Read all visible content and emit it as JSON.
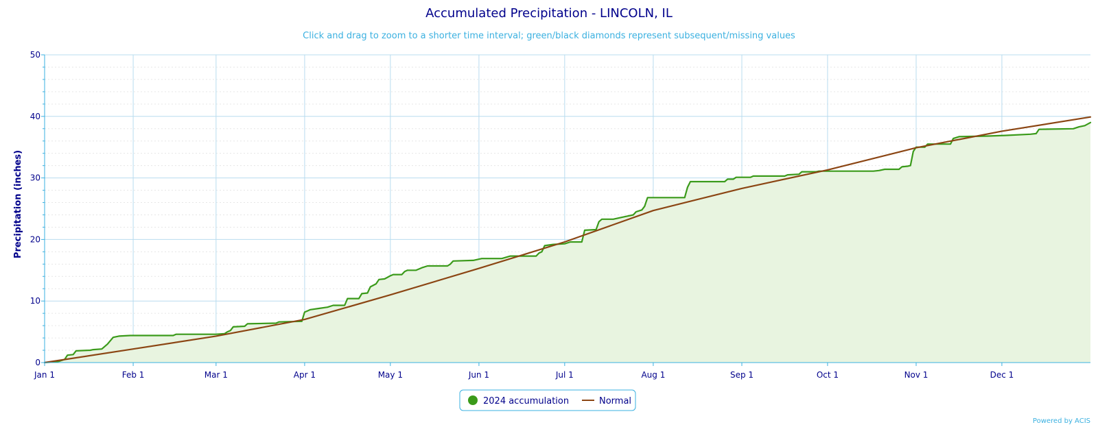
{
  "chart_data": {
    "type": "area",
    "title": "Accumulated Precipitation - LINCOLN, IL",
    "subtitle": "Click and drag to zoom to a shorter time interval; green/black diamonds represent subsequent/missing values",
    "xlabel": "",
    "ylabel": "Precipitation (inches)",
    "ylim": [
      0,
      50
    ],
    "yticks": [
      "0",
      "10",
      "20",
      "30",
      "40",
      "50"
    ],
    "x_range_days": [
      0,
      366
    ],
    "xticks": [
      {
        "label": "Jan 1",
        "day": 0
      },
      {
        "label": "Feb 1",
        "day": 31
      },
      {
        "label": "Mar 1",
        "day": 60
      },
      {
        "label": "Apr 1",
        "day": 91
      },
      {
        "label": "May 1",
        "day": 121
      },
      {
        "label": "Jun 1",
        "day": 152
      },
      {
        "label": "Jul 1",
        "day": 182
      },
      {
        "label": "Aug 1",
        "day": 213
      },
      {
        "label": "Sep 1",
        "day": 244
      },
      {
        "label": "Oct 1",
        "day": 274
      },
      {
        "label": "Nov 1",
        "day": 305
      },
      {
        "label": "Dec 1",
        "day": 335
      }
    ],
    "grid": true,
    "legend_position": "bottom-center",
    "series": [
      {
        "name": "2024 accumulation",
        "color": "#3a9a1a",
        "fill": "#e8f4e0",
        "style": "step-area",
        "points": [
          [
            0,
            0
          ],
          [
            3,
            0.1
          ],
          [
            5,
            0.2
          ],
          [
            7,
            0.5
          ],
          [
            8,
            1.2
          ],
          [
            10,
            1.3
          ],
          [
            11,
            1.9
          ],
          [
            16,
            2.0
          ],
          [
            17,
            2.1
          ],
          [
            20,
            2.2
          ],
          [
            22,
            3.0
          ],
          [
            24,
            4.1
          ],
          [
            26,
            4.3
          ],
          [
            30,
            4.4
          ],
          [
            45,
            4.4
          ],
          [
            46,
            4.6
          ],
          [
            60,
            4.6
          ],
          [
            63,
            4.7
          ],
          [
            64,
            5.0
          ],
          [
            65,
            5.2
          ],
          [
            66,
            5.8
          ],
          [
            70,
            5.9
          ],
          [
            71,
            6.3
          ],
          [
            81,
            6.4
          ],
          [
            82,
            6.6
          ],
          [
            90,
            6.7
          ],
          [
            91,
            8.2
          ],
          [
            92,
            8.4
          ],
          [
            93,
            8.6
          ],
          [
            96,
            8.8
          ],
          [
            99,
            9.0
          ],
          [
            101,
            9.3
          ],
          [
            105,
            9.3
          ],
          [
            106,
            10.4
          ],
          [
            110,
            10.4
          ],
          [
            111,
            11.2
          ],
          [
            113,
            11.3
          ],
          [
            114,
            12.3
          ],
          [
            116,
            12.8
          ],
          [
            117,
            13.5
          ],
          [
            119,
            13.6
          ],
          [
            121,
            14.1
          ],
          [
            122,
            14.3
          ],
          [
            125,
            14.3
          ],
          [
            126,
            14.8
          ],
          [
            127,
            15.0
          ],
          [
            130,
            15.0
          ],
          [
            132,
            15.4
          ],
          [
            134,
            15.7
          ],
          [
            141,
            15.7
          ],
          [
            142,
            16.0
          ],
          [
            143,
            16.5
          ],
          [
            150,
            16.6
          ],
          [
            153,
            16.9
          ],
          [
            160,
            16.9
          ],
          [
            163,
            17.3
          ],
          [
            172,
            17.3
          ],
          [
            173,
            17.8
          ],
          [
            174,
            18.0
          ],
          [
            175,
            19.0
          ],
          [
            178,
            19.2
          ],
          [
            182,
            19.3
          ],
          [
            184,
            19.6
          ],
          [
            188,
            19.6
          ],
          [
            189,
            21.5
          ],
          [
            193,
            21.6
          ],
          [
            194,
            22.9
          ],
          [
            195,
            23.3
          ],
          [
            199,
            23.3
          ],
          [
            202,
            23.6
          ],
          [
            204,
            23.8
          ],
          [
            206,
            24.0
          ],
          [
            207,
            24.5
          ],
          [
            209,
            24.8
          ],
          [
            210,
            25.4
          ],
          [
            211,
            26.8
          ],
          [
            224,
            26.8
          ],
          [
            225,
            28.5
          ],
          [
            226,
            29.4
          ],
          [
            238,
            29.4
          ],
          [
            239,
            29.8
          ],
          [
            241,
            29.8
          ],
          [
            242,
            30.1
          ],
          [
            247,
            30.1
          ],
          [
            248,
            30.3
          ],
          [
            259,
            30.3
          ],
          [
            260,
            30.5
          ],
          [
            264,
            30.6
          ],
          [
            265,
            31.0
          ],
          [
            270,
            31.0
          ],
          [
            271,
            31.1
          ],
          [
            290,
            31.1
          ],
          [
            292,
            31.2
          ],
          [
            294,
            31.4
          ],
          [
            299,
            31.4
          ],
          [
            300,
            31.8
          ],
          [
            302,
            31.9
          ],
          [
            303,
            32.0
          ],
          [
            304,
            34.3
          ],
          [
            305,
            35.0
          ],
          [
            308,
            35.0
          ],
          [
            309,
            35.5
          ],
          [
            317,
            35.5
          ],
          [
            318,
            36.4
          ],
          [
            320,
            36.7
          ],
          [
            330,
            36.8
          ],
          [
            336,
            36.9
          ],
          [
            345,
            37.1
          ],
          [
            347,
            37.2
          ],
          [
            348,
            37.9
          ],
          [
            360,
            38.0
          ],
          [
            362,
            38.3
          ],
          [
            364,
            38.5
          ],
          [
            366,
            39.0
          ]
        ]
      },
      {
        "name": "Normal",
        "color": "#8b4513",
        "style": "line",
        "points": [
          [
            0,
            0
          ],
          [
            31,
            2.2
          ],
          [
            60,
            4.3
          ],
          [
            91,
            7.0
          ],
          [
            121,
            11.0
          ],
          [
            152,
            15.3
          ],
          [
            182,
            19.6
          ],
          [
            213,
            24.7
          ],
          [
            244,
            28.3
          ],
          [
            274,
            31.3
          ],
          [
            305,
            34.9
          ],
          [
            335,
            37.6
          ],
          [
            366,
            39.9
          ]
        ]
      }
    ]
  },
  "credit": "Powered by ACIS"
}
